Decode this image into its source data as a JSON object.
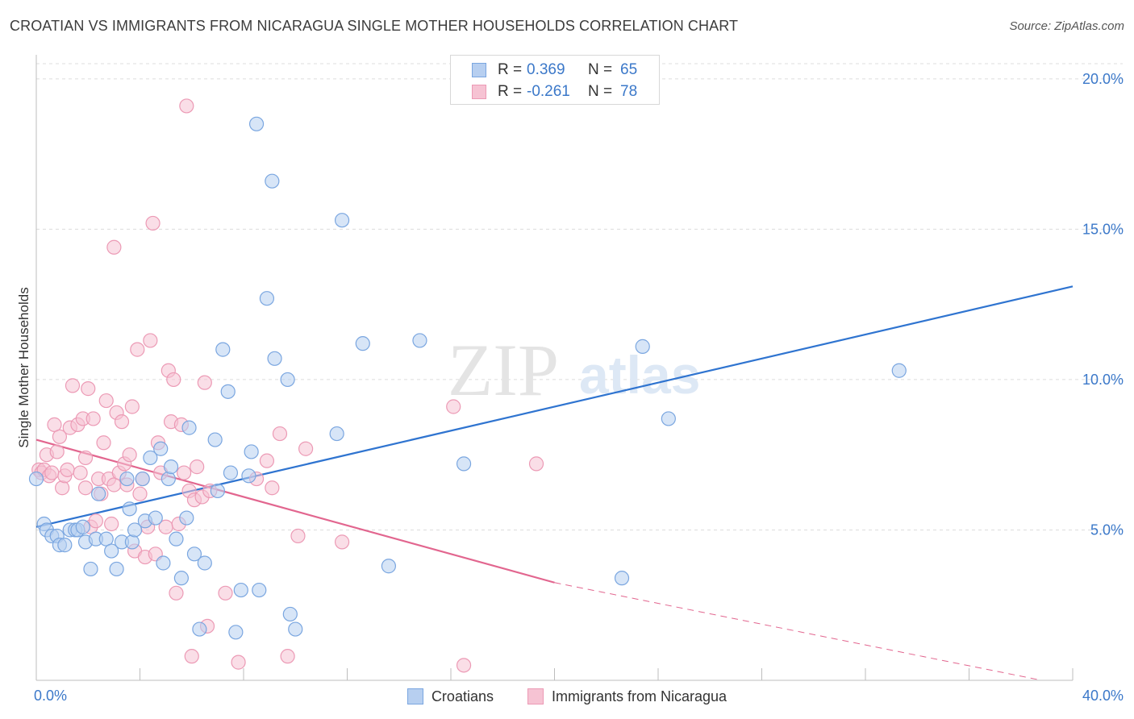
{
  "title": "CROATIAN VS IMMIGRANTS FROM NICARAGUA SINGLE MOTHER HOUSEHOLDS CORRELATION CHART",
  "source": "Source: ZipAtlas.com",
  "watermark": {
    "zip": "ZIP",
    "atlas": "atlas"
  },
  "legend_top": [
    {
      "r_label": "R =",
      "r_value": "0.369",
      "n_label": "N =",
      "n_value": "65"
    },
    {
      "r_label": "R =",
      "r_value": "-0.261",
      "n_label": "N =",
      "n_value": "78"
    }
  ],
  "legend_bottom": [
    "Croatians",
    "Immigrants from Nicaragua"
  ],
  "colors": {
    "blue_fill": "#b7cff0",
    "blue_stroke": "#7aa6e0",
    "blue_line": "#2f74d0",
    "pink_fill": "#f6c3d3",
    "pink_stroke": "#ec9ab5",
    "pink_line": "#e2668f",
    "tick_label": "#3b78c9",
    "grid": "#dcdcdc"
  },
  "chart_data": {
    "type": "scatter",
    "title": "CROATIAN VS IMMIGRANTS FROM NICARAGUA SINGLE MOTHER HOUSEHOLDS CORRELATION CHART",
    "xlabel": "",
    "ylabel": "Single Mother Households",
    "xlim": [
      0,
      40
    ],
    "ylim": [
      0,
      20.8
    ],
    "x_tick_labels": [
      "0.0%",
      "40.0%"
    ],
    "y_ticks": [
      5,
      10,
      15,
      20
    ],
    "y_tick_labels": [
      "5.0%",
      "10.0%",
      "15.0%",
      "20.0%"
    ],
    "grid": true,
    "legend_placement": "top-center",
    "series": [
      {
        "name": "Croatians",
        "r": 0.369,
        "n": 65,
        "trend": {
          "x": [
            0,
            40
          ],
          "y": [
            5.1,
            13.1
          ],
          "dashed_from": null
        },
        "points": [
          [
            0.3,
            5.2
          ],
          [
            0.4,
            5.0
          ],
          [
            0.6,
            4.8
          ],
          [
            0.8,
            4.8
          ],
          [
            0.9,
            4.5
          ],
          [
            1.1,
            4.5
          ],
          [
            1.3,
            5.0
          ],
          [
            1.5,
            5.0
          ],
          [
            1.6,
            5.0
          ],
          [
            1.8,
            5.1
          ],
          [
            1.9,
            4.6
          ],
          [
            2.1,
            3.7
          ],
          [
            2.3,
            4.7
          ],
          [
            2.4,
            6.2
          ],
          [
            2.7,
            4.7
          ],
          [
            2.9,
            4.3
          ],
          [
            3.1,
            3.7
          ],
          [
            3.3,
            4.6
          ],
          [
            3.5,
            6.7
          ],
          [
            3.6,
            5.7
          ],
          [
            3.7,
            4.6
          ],
          [
            3.8,
            5.0
          ],
          [
            4.1,
            6.7
          ],
          [
            4.2,
            5.3
          ],
          [
            4.4,
            7.4
          ],
          [
            4.6,
            5.4
          ],
          [
            4.8,
            7.7
          ],
          [
            4.9,
            3.9
          ],
          [
            5.1,
            6.7
          ],
          [
            5.2,
            7.1
          ],
          [
            5.4,
            4.7
          ],
          [
            5.6,
            3.4
          ],
          [
            5.8,
            5.4
          ],
          [
            5.9,
            8.4
          ],
          [
            6.1,
            4.2
          ],
          [
            6.3,
            1.7
          ],
          [
            6.5,
            3.9
          ],
          [
            6.9,
            8.0
          ],
          [
            7.0,
            6.3
          ],
          [
            7.2,
            11.0
          ],
          [
            7.4,
            9.6
          ],
          [
            7.5,
            6.9
          ],
          [
            7.7,
            1.6
          ],
          [
            7.9,
            3.0
          ],
          [
            8.2,
            6.8
          ],
          [
            8.3,
            7.6
          ],
          [
            8.6,
            3.0
          ],
          [
            8.5,
            18.5
          ],
          [
            8.9,
            12.7
          ],
          [
            9.1,
            16.6
          ],
          [
            9.2,
            10.7
          ],
          [
            9.7,
            10.0
          ],
          [
            9.8,
            2.2
          ],
          [
            10.0,
            1.7
          ],
          [
            11.6,
            8.2
          ],
          [
            11.8,
            15.3
          ],
          [
            12.6,
            11.2
          ],
          [
            13.6,
            3.8
          ],
          [
            14.8,
            11.3
          ],
          [
            16.5,
            7.2
          ],
          [
            22.6,
            3.4
          ],
          [
            23.4,
            11.1
          ],
          [
            24.4,
            8.7
          ],
          [
            33.3,
            10.3
          ],
          [
            0.0,
            6.7
          ]
        ]
      },
      {
        "name": "Immigrants from Nicaragua",
        "r": -0.261,
        "n": 78,
        "trend": {
          "x": [
            0,
            40
          ],
          "y": [
            8.0,
            -1.5
          ],
          "dashed_from": 20
        },
        "points": [
          [
            0.1,
            7.0
          ],
          [
            0.2,
            6.9
          ],
          [
            0.3,
            7.0
          ],
          [
            0.4,
            7.5
          ],
          [
            0.5,
            6.8
          ],
          [
            0.6,
            6.9
          ],
          [
            0.7,
            8.5
          ],
          [
            0.8,
            7.6
          ],
          [
            0.9,
            8.1
          ],
          [
            1.0,
            6.4
          ],
          [
            1.1,
            6.8
          ],
          [
            1.2,
            7.0
          ],
          [
            1.3,
            8.4
          ],
          [
            1.4,
            9.8
          ],
          [
            1.6,
            8.5
          ],
          [
            1.7,
            6.9
          ],
          [
            1.8,
            8.7
          ],
          [
            1.9,
            6.4
          ],
          [
            1.9,
            7.4
          ],
          [
            2.0,
            9.7
          ],
          [
            2.1,
            5.1
          ],
          [
            2.2,
            8.7
          ],
          [
            2.3,
            5.3
          ],
          [
            2.4,
            6.7
          ],
          [
            2.5,
            6.2
          ],
          [
            2.6,
            7.9
          ],
          [
            2.7,
            9.3
          ],
          [
            2.8,
            6.7
          ],
          [
            2.9,
            5.2
          ],
          [
            3.0,
            6.5
          ],
          [
            3.1,
            8.9
          ],
          [
            3.2,
            6.9
          ],
          [
            3.3,
            8.6
          ],
          [
            3.4,
            7.2
          ],
          [
            3.5,
            6.5
          ],
          [
            3.6,
            7.5
          ],
          [
            3.7,
            9.1
          ],
          [
            3.8,
            4.3
          ],
          [
            3.9,
            11.0
          ],
          [
            4.0,
            6.2
          ],
          [
            4.1,
            6.7
          ],
          [
            4.2,
            4.1
          ],
          [
            4.3,
            5.1
          ],
          [
            4.4,
            11.3
          ],
          [
            4.5,
            15.2
          ],
          [
            4.6,
            4.2
          ],
          [
            4.7,
            7.9
          ],
          [
            4.8,
            6.9
          ],
          [
            5.0,
            5.1
          ],
          [
            5.1,
            10.3
          ],
          [
            5.2,
            8.6
          ],
          [
            5.3,
            10.0
          ],
          [
            5.4,
            2.9
          ],
          [
            5.5,
            5.2
          ],
          [
            5.6,
            8.5
          ],
          [
            5.7,
            6.9
          ],
          [
            5.8,
            19.1
          ],
          [
            5.9,
            6.3
          ],
          [
            6.0,
            0.8
          ],
          [
            6.1,
            6.0
          ],
          [
            6.2,
            7.1
          ],
          [
            6.4,
            6.1
          ],
          [
            6.5,
            9.9
          ],
          [
            6.6,
            1.8
          ],
          [
            6.7,
            6.3
          ],
          [
            3.0,
            14.4
          ],
          [
            7.3,
            2.9
          ],
          [
            7.8,
            0.6
          ],
          [
            8.5,
            6.7
          ],
          [
            8.9,
            7.3
          ],
          [
            9.1,
            6.4
          ],
          [
            9.4,
            8.2
          ],
          [
            9.7,
            0.8
          ],
          [
            10.1,
            4.8
          ],
          [
            10.4,
            7.7
          ],
          [
            11.8,
            4.6
          ],
          [
            16.1,
            9.1
          ],
          [
            16.5,
            0.5
          ],
          [
            19.3,
            7.2
          ]
        ]
      }
    ]
  }
}
